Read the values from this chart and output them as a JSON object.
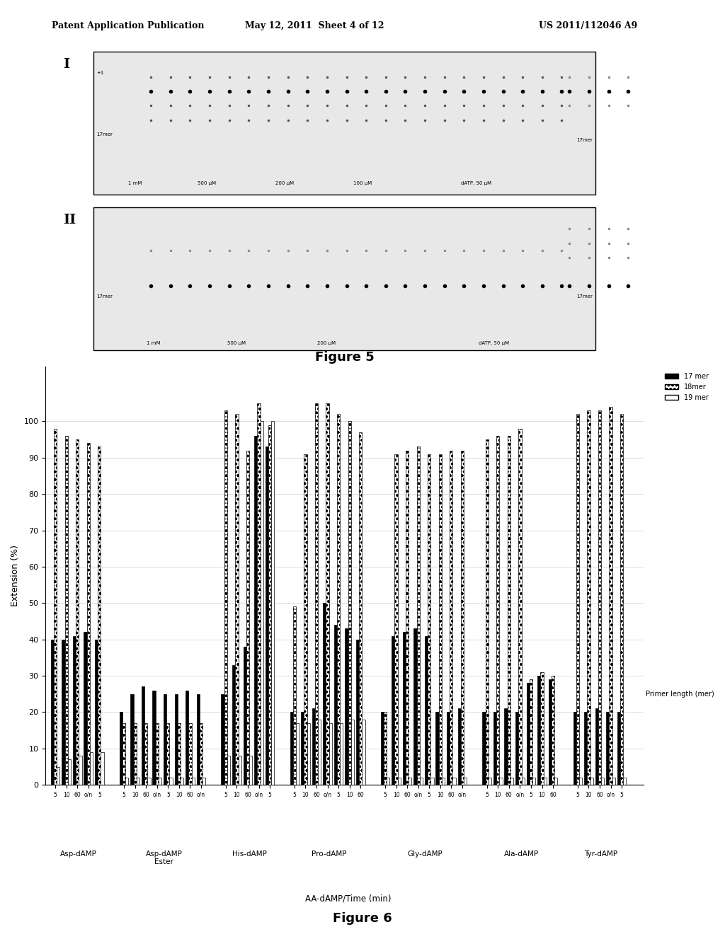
{
  "header_left": "Patent Application Publication",
  "header_mid": "May 12, 2011  Sheet 4 of 12",
  "header_right": "US 2011/112046 A9",
  "fig5_title": "Figure 5",
  "fig6_title": "Figure 6",
  "fig6_ylabel": "Extension (%)",
  "fig6_xlabel": "AA-dAMP/Time (min)",
  "fig6_ylim": [
    0,
    110
  ],
  "fig6_yticks": [
    0,
    10,
    20,
    30,
    40,
    50,
    60,
    70,
    80,
    90,
    100
  ],
  "legend_labels": [
    "17 mer",
    "18mer",
    "19 mer"
  ],
  "legend_colors": [
    "black",
    "white_dotted",
    "white"
  ],
  "groups": [
    {
      "name": "Asp-dAMP",
      "label": "Asp-dAMP"
    },
    {
      "name": "Asp-dAMP Ester",
      "label": "Asp-dAMP\nEster"
    },
    {
      "name": "His-dAMP",
      "label": "His-dAMP"
    },
    {
      "name": "Pro-dAMP",
      "label": "Pro-dAMP"
    },
    {
      "name": "Gly-dAMP",
      "label": "Gly-dAMP"
    },
    {
      "name": "Ala-dAMP",
      "label": "Ala-dAMP"
    },
    {
      "name": "Tyr-dAMP",
      "label": "Tyr-dAMP"
    }
  ],
  "time_labels": [
    "5",
    "10",
    "60",
    "o/n",
    "5",
    "10",
    "60",
    "o/n"
  ],
  "time_labels_short": [
    "5",
    "10",
    "60",
    "o/n"
  ],
  "bar_17mer": [
    40,
    40,
    41,
    42,
    40,
    20,
    25,
    27,
    26,
    25,
    25,
    26,
    25,
    25,
    33,
    38,
    96,
    93,
    20,
    20,
    21,
    50,
    44,
    43,
    40,
    20,
    41,
    42,
    43,
    41,
    20,
    20,
    21,
    20,
    20,
    21,
    20,
    28,
    30,
    29,
    20,
    20,
    21,
    20,
    20
  ],
  "bar_18mer": [
    98,
    96,
    95,
    94,
    93,
    17,
    17,
    17,
    17,
    17,
    17,
    17,
    17,
    103,
    102,
    92,
    105,
    99,
    49,
    91,
    105,
    105,
    102,
    100,
    97,
    20,
    91,
    92,
    93,
    91,
    91,
    92,
    92,
    95,
    96,
    96,
    98,
    29,
    31,
    30,
    102,
    103,
    103,
    104,
    102
  ],
  "bar_19mer": [
    5,
    7,
    8,
    9,
    9,
    2,
    2,
    2,
    2,
    2,
    2,
    2,
    2,
    8,
    8,
    8,
    100,
    100,
    17,
    17,
    18,
    17,
    17,
    18,
    18,
    2,
    2,
    2,
    2,
    2,
    2,
    2,
    2,
    2,
    2,
    2,
    2,
    2,
    2,
    2,
    2,
    2,
    2,
    2,
    2
  ],
  "background_color": "#ffffff",
  "bar_17mer_color": "#000000",
  "bar_18mer_pattern": "dotted",
  "bar_19mer_color": "#ffffff"
}
